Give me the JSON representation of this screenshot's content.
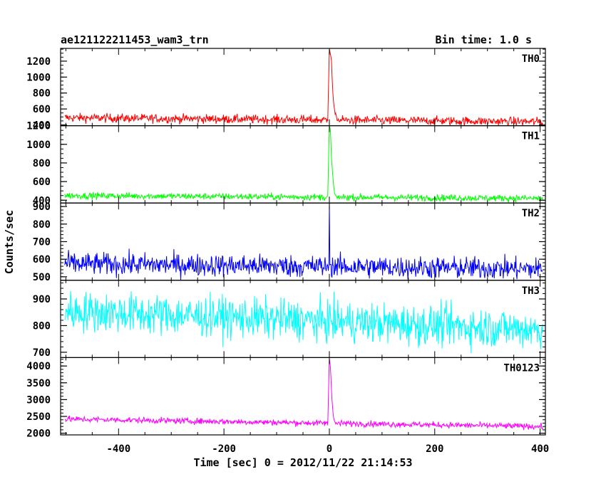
{
  "header": {
    "title": "ae121122211453_wam3_trn",
    "bin_time": "Bin time: 1.0 s"
  },
  "chart_data": {
    "type": "line",
    "xlabel": "Time [sec] 0 = 2012/11/22 21:14:53",
    "ylabel": "Counts/sec",
    "xlim": [
      -510,
      410
    ],
    "x_ticks": [
      -400,
      -200,
      0,
      200,
      400
    ],
    "x_start": -502,
    "x_end": 405,
    "bin_time_s": 1.0,
    "panels": [
      {
        "name": "TH0",
        "color": "#ff0000",
        "ylim": [
          390,
          1360
        ],
        "y_ticks": [
          400,
          600,
          800,
          1000,
          1200
        ],
        "baseline_start": 490,
        "baseline_end": 440,
        "noise": 28,
        "peak": [
          [
            -3,
            470
          ],
          [
            0,
            1360
          ],
          [
            2,
            1300
          ],
          [
            4,
            1180
          ],
          [
            6,
            900
          ],
          [
            8,
            700
          ],
          [
            10,
            560
          ],
          [
            14,
            480
          ]
        ]
      },
      {
        "name": "TH1",
        "color": "#00ff00",
        "ylim": [
          370,
          1200
        ],
        "y_ticks": [
          400,
          600,
          800,
          1000,
          1200
        ],
        "baseline_start": 450,
        "baseline_end": 420,
        "noise": 18,
        "peak": [
          [
            -3,
            440
          ],
          [
            0,
            1200
          ],
          [
            2,
            1150
          ],
          [
            4,
            850
          ],
          [
            6,
            700
          ],
          [
            8,
            560
          ],
          [
            10,
            470
          ],
          [
            14,
            430
          ]
        ]
      },
      {
        "name": "TH2",
        "color": "#0000ff",
        "ylim": [
          480,
          920
        ],
        "y_ticks": [
          500,
          600,
          700,
          800,
          900
        ],
        "baseline_start": 575,
        "baseline_end": 545,
        "noise": 32,
        "peak": [
          [
            -1,
            560
          ],
          [
            0,
            920
          ],
          [
            1,
            560
          ]
        ]
      },
      {
        "name": "TH3",
        "color": "#00ffff",
        "ylim": [
          680,
          970
        ],
        "y_ticks": [
          700,
          800,
          900
        ],
        "baseline_start": 855,
        "baseline_end": 785,
        "noise": 38,
        "peak": []
      },
      {
        "name": "TH0123",
        "color": "#ff00ff",
        "ylim": [
          1950,
          4250
        ],
        "y_ticks": [
          2000,
          2500,
          3000,
          3500,
          4000
        ],
        "baseline_start": 2420,
        "baseline_end": 2200,
        "noise": 45,
        "peak": [
          [
            -3,
            2250
          ],
          [
            0,
            4250
          ],
          [
            2,
            4000
          ],
          [
            4,
            3300
          ],
          [
            6,
            2800
          ],
          [
            8,
            2450
          ],
          [
            12,
            2280
          ]
        ]
      }
    ]
  }
}
